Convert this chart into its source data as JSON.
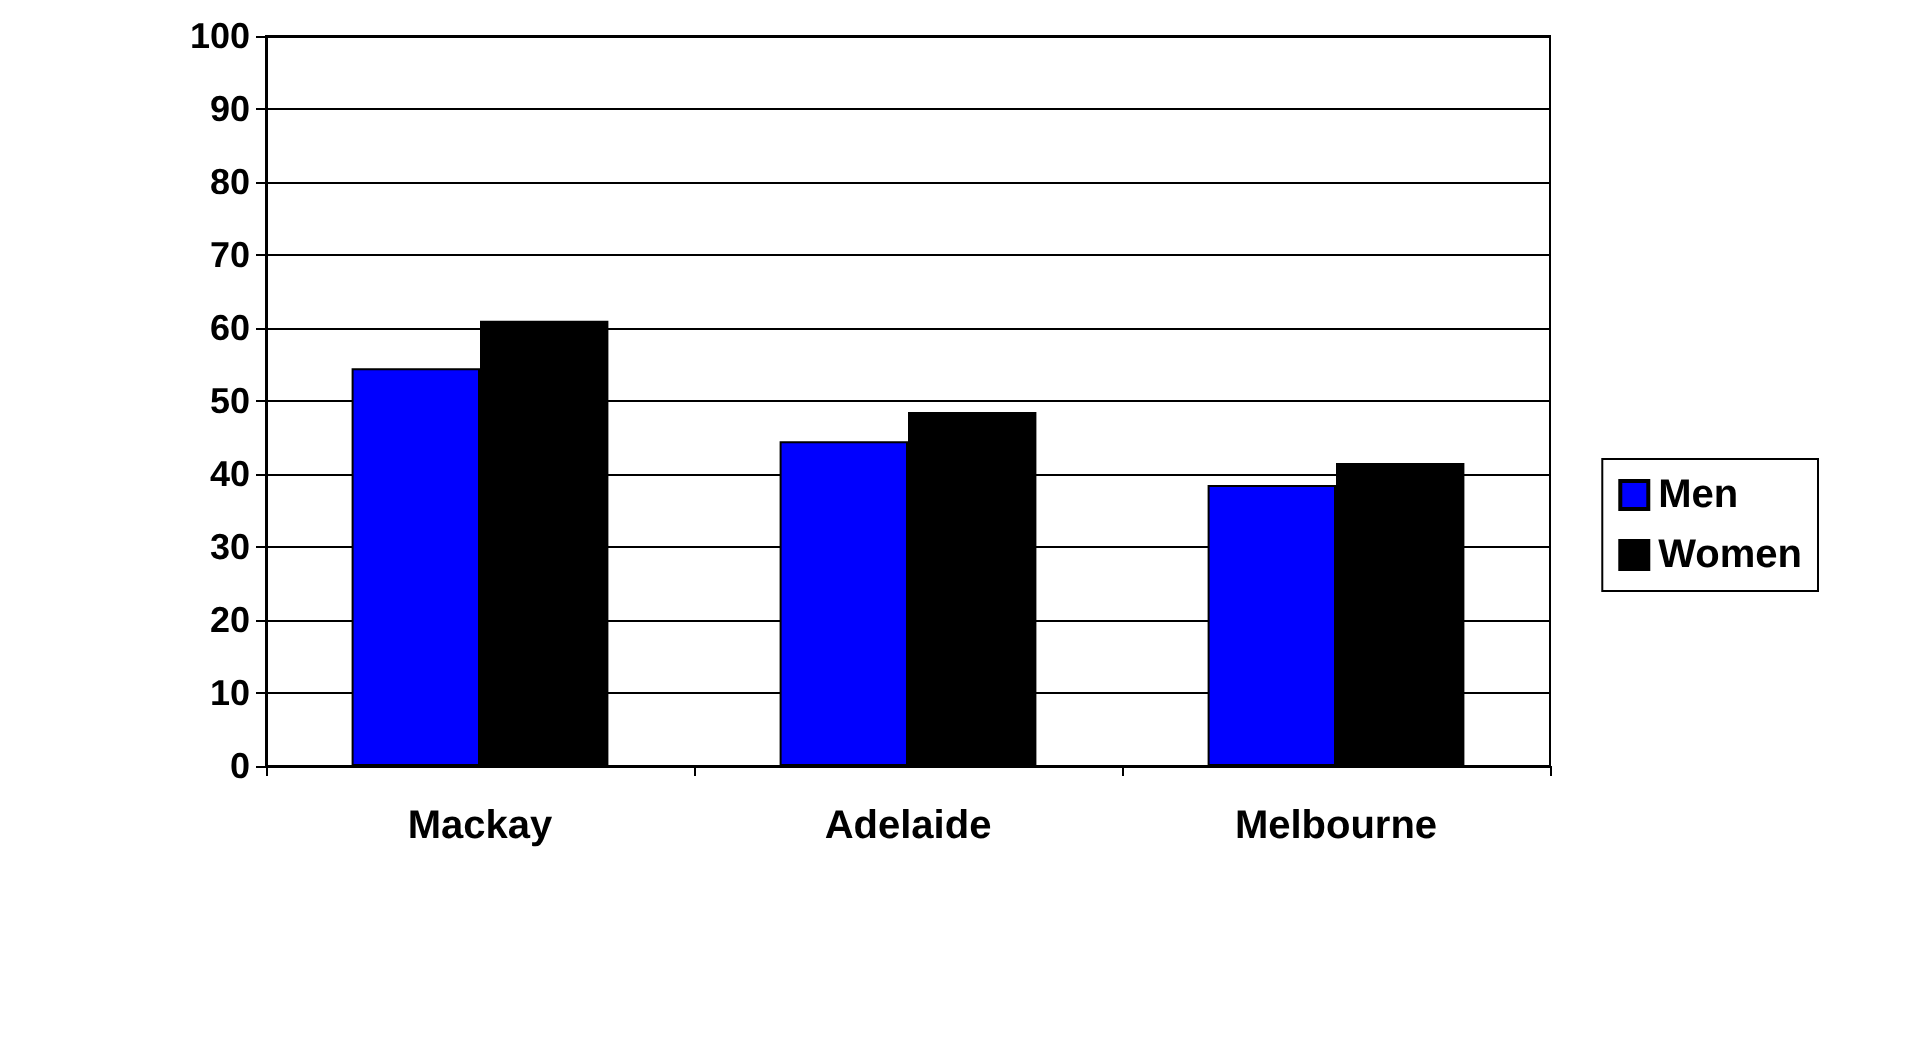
{
  "chart_data": {
    "type": "bar",
    "categories": [
      "Mackay",
      "Adelaide",
      "Melbourne"
    ],
    "series": [
      {
        "name": "Men",
        "color": "#0000ff",
        "values": [
          54.5,
          44.5,
          38.5
        ]
      },
      {
        "name": "Women",
        "color": "#000000",
        "values": [
          61,
          48.5,
          41.5
        ]
      }
    ],
    "ylim": [
      0,
      100
    ],
    "yticks": [
      0,
      10,
      20,
      30,
      40,
      50,
      60,
      70,
      80,
      90,
      100
    ],
    "grid": "y",
    "legend": "right"
  }
}
